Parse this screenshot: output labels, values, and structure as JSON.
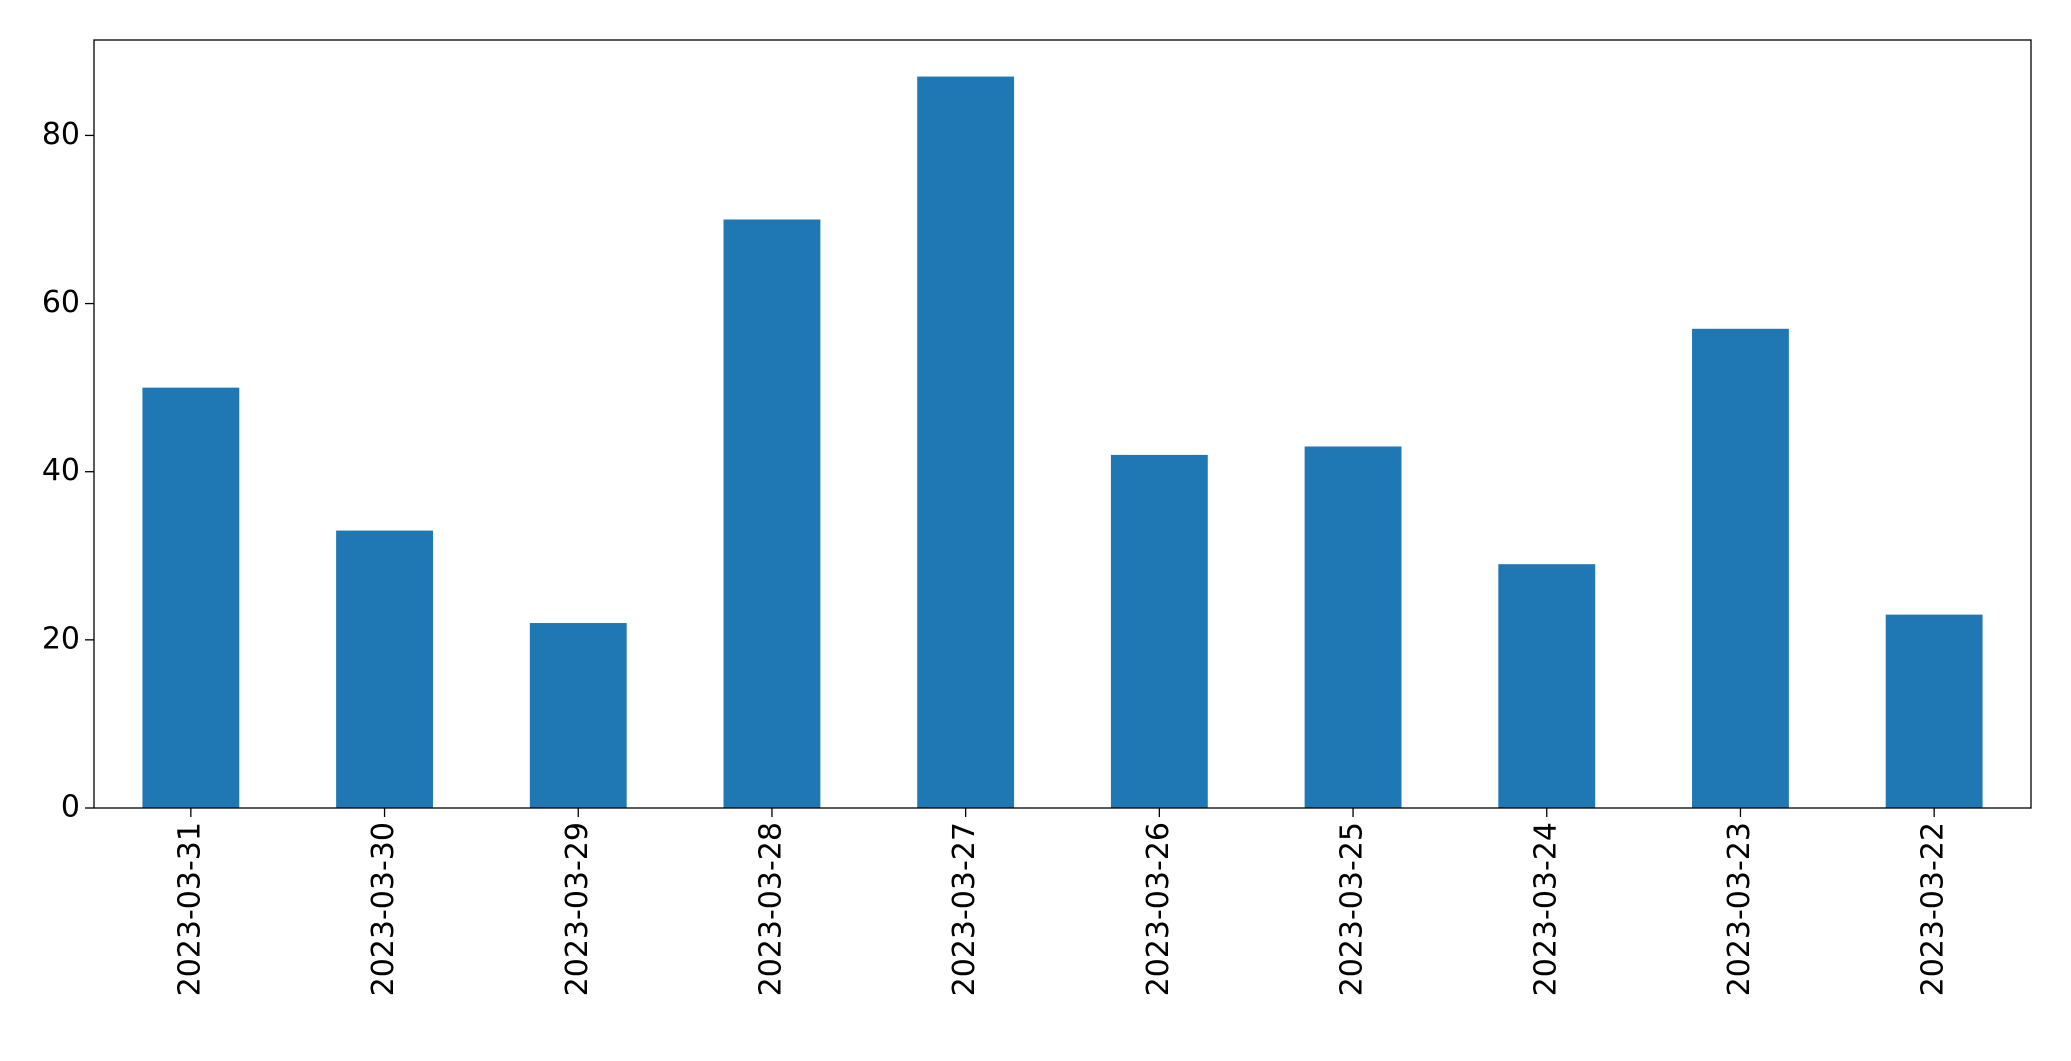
{
  "chart_data": {
    "type": "bar",
    "categories": [
      "2023-03-31",
      "2023-03-30",
      "2023-03-29",
      "2023-03-28",
      "2023-03-27",
      "2023-03-26",
      "2023-03-25",
      "2023-03-24",
      "2023-03-23",
      "2023-03-22"
    ],
    "values": [
      50,
      33,
      22,
      70,
      87,
      42,
      43,
      29,
      57,
      23
    ],
    "color": "#1f77b4",
    "ylim": [
      0,
      91.35
    ],
    "yticks": [
      0,
      20,
      40,
      60,
      80
    ],
    "grid": false
  }
}
